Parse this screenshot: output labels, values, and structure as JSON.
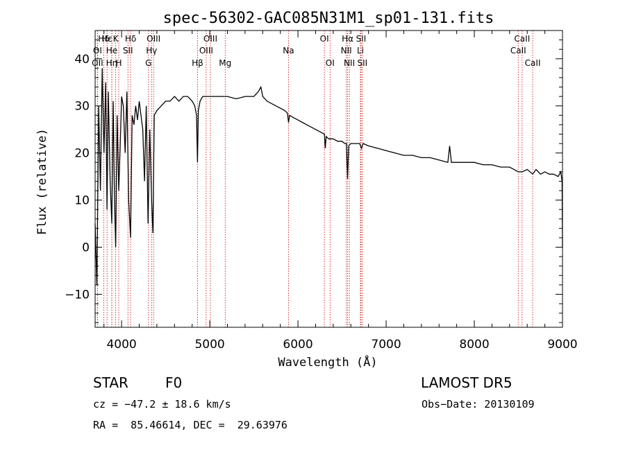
{
  "chart_data": {
    "type": "line",
    "title": "spec-56302-GAC085N31M1_sp01-131.fits",
    "xlabel": "Wavelength (Å)",
    "ylabel": "Flux (relative)",
    "xlim": [
      3700,
      9000
    ],
    "ylim": [
      -17,
      46
    ],
    "x_ticks": [
      4000,
      5000,
      6000,
      7000,
      8000,
      9000
    ],
    "y_ticks": [
      -10,
      0,
      10,
      20,
      30,
      40
    ],
    "grid": false,
    "line_color": "#000000",
    "marker_color": "#cc0000",
    "series": [
      {
        "x": [
          3700,
          3720,
          3740,
          3760,
          3780,
          3800,
          3820,
          3835,
          3850,
          3870,
          3889,
          3905,
          3920,
          3933,
          3950,
          3968,
          3985,
          4000,
          4020,
          4040,
          4060,
          4080,
          4102,
          4120,
          4140,
          4160,
          4180,
          4200,
          4220,
          4240,
          4260,
          4280,
          4300,
          4320,
          4340,
          4355,
          4370,
          4400,
          4450,
          4500,
          4550,
          4600,
          4650,
          4700,
          4750,
          4800,
          4830,
          4850,
          4861,
          4870,
          4890,
          4920,
          4960,
          5000,
          5050,
          5100,
          5150,
          5200,
          5300,
          5400,
          5500,
          5550,
          5580,
          5600,
          5650,
          5700,
          5750,
          5800,
          5850,
          5880,
          5893,
          5905,
          5950,
          6000,
          6050,
          6100,
          6150,
          6200,
          6250,
          6300,
          6310,
          6320,
          6350,
          6400,
          6450,
          6500,
          6530,
          6550,
          6563,
          6575,
          6600,
          6650,
          6700,
          6720,
          6740,
          6800,
          6900,
          7000,
          7100,
          7200,
          7300,
          7400,
          7500,
          7600,
          7700,
          7720,
          7740,
          7800,
          7900,
          8000,
          8100,
          8200,
          8300,
          8400,
          8450,
          8498,
          8542,
          8600,
          8662,
          8700,
          8750,
          8800,
          8850,
          8900,
          8950,
          8980,
          8995,
          9000
        ],
        "y": [
          5,
          -8,
          30,
          12,
          38,
          20,
          35,
          8,
          33,
          14,
          5,
          31,
          10,
          0,
          28,
          12,
          22,
          32,
          30,
          20,
          33,
          10,
          2,
          28,
          26,
          30,
          27,
          31,
          28,
          25,
          14,
          30,
          5,
          25,
          10,
          3,
          28,
          29,
          30,
          31,
          31,
          32,
          31,
          32,
          32,
          31,
          30,
          28,
          18,
          29,
          31,
          32,
          32,
          32,
          32,
          32,
          32,
          32,
          31.5,
          32,
          32,
          33,
          34,
          32,
          31,
          30.5,
          30,
          29.5,
          29,
          28.5,
          26.5,
          28,
          27.5,
          27,
          26.5,
          26,
          25.5,
          25,
          24.5,
          24,
          21,
          23.5,
          23,
          23,
          22.5,
          22.5,
          22,
          22,
          14.5,
          21.5,
          22,
          22,
          22,
          21,
          22,
          21.5,
          21,
          20.5,
          20,
          19.5,
          19.5,
          19,
          19,
          18.5,
          18,
          21.5,
          18,
          18,
          18,
          18,
          17.5,
          17.5,
          17,
          17,
          16.5,
          16,
          16,
          16.5,
          15.5,
          16.5,
          15.5,
          16,
          15.5,
          15.5,
          15,
          16,
          14,
          0
        ]
      }
    ],
    "lines": [
      {
        "label": "Hδ",
        "wl": 3798,
        "row": 1
      },
      {
        "label": "OI",
        "wl": 3727,
        "row": 2
      },
      {
        "label": "OII",
        "wl": 3727,
        "row": 3
      },
      {
        "label": "Hε",
        "wl": 3835,
        "row": 1
      },
      {
        "label": "Hη",
        "wl": 3889,
        "row": 3
      },
      {
        "label": "He",
        "wl": 3889,
        "row": 2
      },
      {
        "label": "K",
        "wl": 3933,
        "row": 1
      },
      {
        "label": "H",
        "wl": 3968,
        "row": 3
      },
      {
        "label": "Hδ",
        "wl": 4102,
        "row": 1
      },
      {
        "label": "SII",
        "wl": 4072,
        "row": 2
      },
      {
        "label": "OIII",
        "wl": 4363,
        "row": 1
      },
      {
        "label": "Hγ",
        "wl": 4340,
        "row": 2
      },
      {
        "label": "G",
        "wl": 4305,
        "row": 3
      },
      {
        "label": "Hβ",
        "wl": 4861,
        "row": 3
      },
      {
        "label": "OIII",
        "wl": 5007,
        "row": 1
      },
      {
        "label": "OIII",
        "wl": 4959,
        "row": 2
      },
      {
        "label": "Mg",
        "wl": 5175,
        "row": 3
      },
      {
        "label": "Na",
        "wl": 5893,
        "row": 2
      },
      {
        "label": "OI",
        "wl": 6300,
        "row": 1
      },
      {
        "label": "OI",
        "wl": 6364,
        "row": 3
      },
      {
        "label": "Hα",
        "wl": 6563,
        "row": 1
      },
      {
        "label": "NII",
        "wl": 6548,
        "row": 2
      },
      {
        "label": "NII",
        "wl": 6583,
        "row": 3
      },
      {
        "label": "SII",
        "wl": 6716,
        "row": 1
      },
      {
        "label": "Li",
        "wl": 6708,
        "row": 2
      },
      {
        "label": "SII",
        "wl": 6731,
        "row": 3
      },
      {
        "label": "CaII",
        "wl": 8542,
        "row": 1
      },
      {
        "label": "CaII",
        "wl": 8498,
        "row": 2
      },
      {
        "label": "CaII",
        "wl": 8662,
        "row": 3
      }
    ]
  },
  "info": {
    "class_label": "STAR",
    "subclass_label": "F0",
    "survey": "LAMOST DR5",
    "cz_text": "cz = −47.2 ± 18.6 km/s",
    "obs_date_text": "Obs−Date: 20130109",
    "radec_text": "RA =  85.46614, DEC =  29.63976"
  }
}
